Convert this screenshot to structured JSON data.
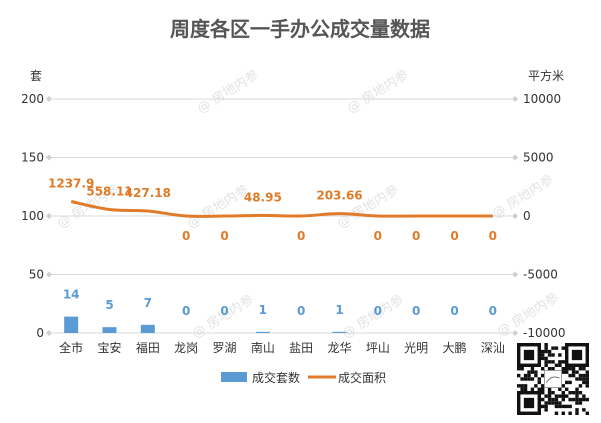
{
  "chart_data": {
    "type": "bar",
    "title": "周度各区一手办公成交量数据",
    "categories": [
      "全市",
      "宝安",
      "福田",
      "龙岗",
      "罗湖",
      "南山",
      "盐田",
      "龙华",
      "坪山",
      "光明",
      "大鹏",
      "深汕"
    ],
    "y_left": {
      "unit": "套",
      "ylim": [
        0,
        200
      ],
      "ticks": [
        "0",
        "50",
        "100",
        "150",
        "200"
      ]
    },
    "y_right": {
      "unit": "平方米",
      "ylim": [
        -10000,
        10000
      ],
      "ticks": [
        "-10000",
        "-5000",
        "0",
        "5000",
        "10000"
      ]
    },
    "series": [
      {
        "name": "成交套数",
        "kind": "bar",
        "axis": "left",
        "color": "#5b9bd5",
        "values": [
          14,
          5,
          7,
          0,
          0,
          1,
          0,
          1,
          0,
          0,
          0,
          0
        ],
        "labels": [
          "14",
          "5",
          "7",
          "0",
          "0",
          "1",
          "0",
          "1",
          "0",
          "0",
          "0",
          "0"
        ]
      },
      {
        "name": "成交面积",
        "kind": "line",
        "axis": "right",
        "color": "#e07b29",
        "values": [
          1237.9,
          558.11,
          427.18,
          0,
          0,
          48.95,
          0,
          203.66,
          0,
          0,
          0,
          0
        ],
        "labels": [
          "1237.9",
          "558.11",
          "427.18",
          "0",
          "0",
          "48.95",
          "0",
          "203.66",
          "0",
          "0",
          "0",
          "0"
        ]
      }
    ],
    "grid": true,
    "legend_position": "bottom-center"
  },
  "watermark": "房地内参"
}
